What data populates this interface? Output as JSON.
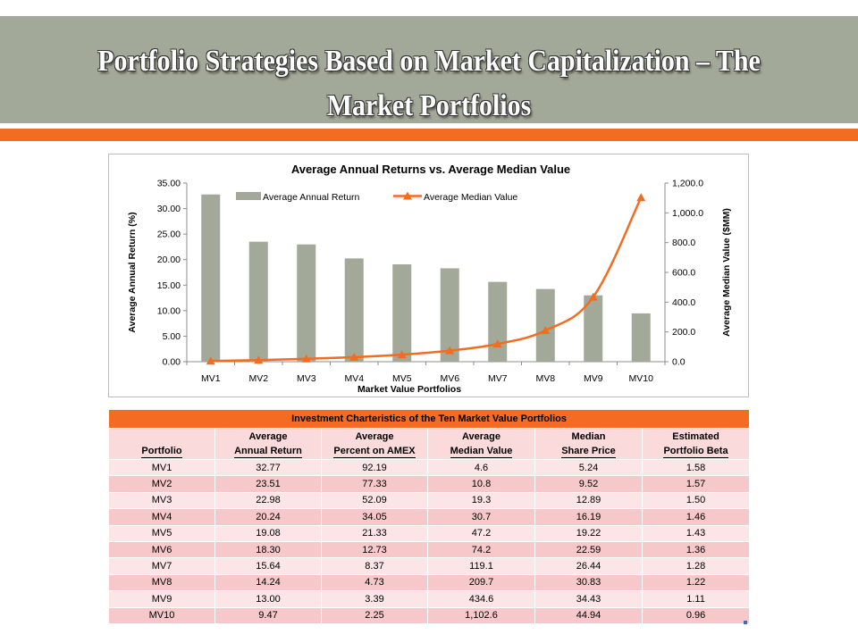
{
  "slide": {
    "title": "Portfolio Strategies Based on Market Capitalization – The Market Portfolios",
    "colors": {
      "title_band": "#a3a998",
      "accent": "#f26d21",
      "bar": "#a3a998",
      "line": "#f26d21"
    }
  },
  "chart_data": {
    "type": "bar",
    "title": "Average Annual Returns vs. Average Median Value",
    "xlabel": "Market Value Portfolios",
    "ylabel": "Average Annual Return (%)",
    "y2label": "Average Median Value ($MM)",
    "categories": [
      "MV1",
      "MV2",
      "MV3",
      "MV4",
      "MV5",
      "MV6",
      "MV7",
      "MV8",
      "MV9",
      "MV10"
    ],
    "ylim": [
      0,
      35
    ],
    "y2lim": [
      0,
      1200
    ],
    "yticks": [
      "0.00",
      "5.00",
      "10.00",
      "15.00",
      "20.00",
      "25.00",
      "30.00",
      "35.00"
    ],
    "y2ticks": [
      "0.0",
      "200.0",
      "400.0",
      "600.0",
      "800.0",
      "1,000.0",
      "1,200.0"
    ],
    "legend_position": "top-left",
    "grid": false,
    "series": [
      {
        "name": "Average Annual Return",
        "type": "bar",
        "axis": "left",
        "values": [
          32.77,
          23.51,
          22.98,
          20.24,
          19.08,
          18.3,
          15.64,
          14.24,
          13.0,
          9.47
        ]
      },
      {
        "name": "Average Median Value",
        "type": "line",
        "axis": "right",
        "marker": "triangle",
        "values": [
          4.6,
          10.8,
          19.3,
          30.7,
          47.2,
          74.2,
          119.1,
          209.7,
          434.6,
          1102.6
        ]
      }
    ]
  },
  "table": {
    "title": "Investment Charteristics of the Ten Market Value Portfolios",
    "columns": [
      {
        "line1": "",
        "line2": "Portfolio"
      },
      {
        "line1": "Average",
        "line2": "Annual Return"
      },
      {
        "line1": "Average",
        "line2": "Percent on AMEX"
      },
      {
        "line1": "Average",
        "line2": "Median Value"
      },
      {
        "line1": "Median",
        "line2": "Share Price"
      },
      {
        "line1": "Estimated",
        "line2": "Portfolio Beta"
      }
    ],
    "rows": [
      [
        "MV1",
        "32.77",
        "92.19",
        "4.6",
        "5.24",
        "1.58"
      ],
      [
        "MV2",
        "23.51",
        "77.33",
        "10.8",
        "9.52",
        "1.57"
      ],
      [
        "MV3",
        "22.98",
        "52.09",
        "19.3",
        "12.89",
        "1.50"
      ],
      [
        "MV4",
        "20.24",
        "34.05",
        "30.7",
        "16.19",
        "1.46"
      ],
      [
        "MV5",
        "19.08",
        "21.33",
        "47.2",
        "19.22",
        "1.43"
      ],
      [
        "MV6",
        "18.30",
        "12.73",
        "74.2",
        "22.59",
        "1.36"
      ],
      [
        "MV7",
        "15.64",
        "8.37",
        "119.1",
        "26.44",
        "1.28"
      ],
      [
        "MV8",
        "14.24",
        "4.73",
        "209.7",
        "30.83",
        "1.22"
      ],
      [
        "MV9",
        "13.00",
        "3.39",
        "434.6",
        "34.43",
        "1.11"
      ],
      [
        "MV10",
        "9.47",
        "2.25",
        "1,102.6",
        "44.94",
        "0.96"
      ]
    ]
  }
}
